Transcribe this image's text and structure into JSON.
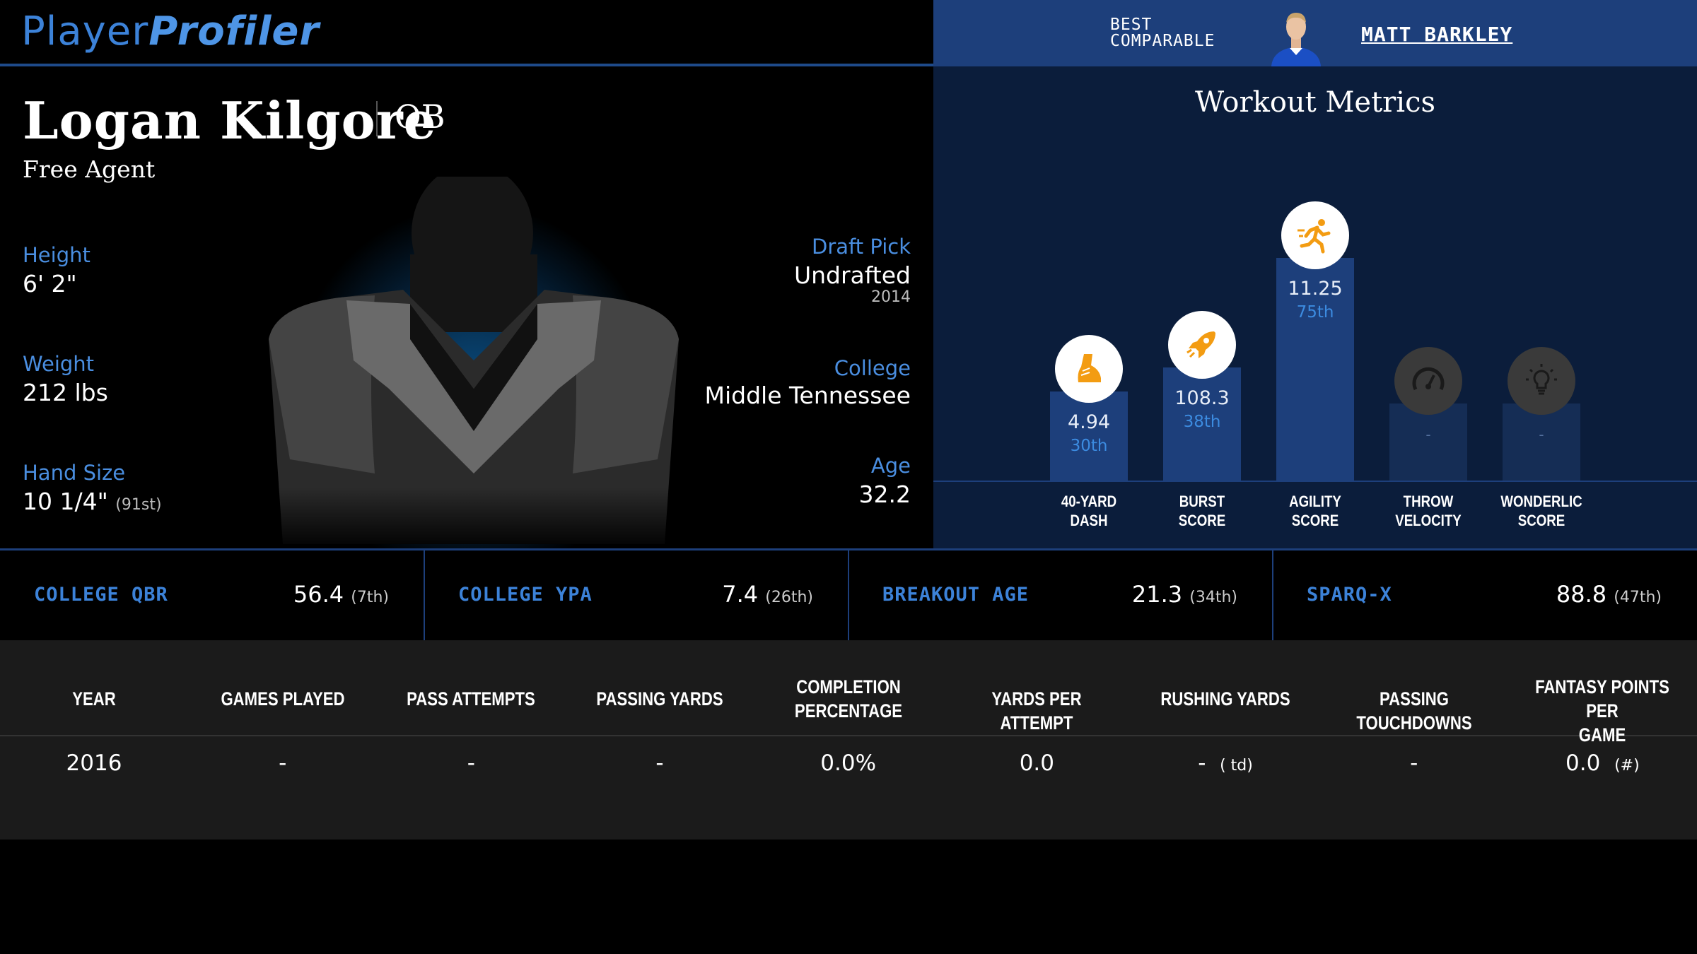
{
  "header": {
    "logo_part1": "Player",
    "logo_part2": "Profiler",
    "comparable_label_line1": "BEST",
    "comparable_label_line2": "COMPARABLE",
    "comparable_name": "MATT BARKLEY"
  },
  "player": {
    "name": "Logan Kilgore",
    "position": "QB",
    "team": "Free Agent",
    "height_label": "Height",
    "height": "6' 2\"",
    "weight_label": "Weight",
    "weight": "212 lbs",
    "hand_label": "Hand Size",
    "hand": "10 1/4\"",
    "hand_rank": "(91st)",
    "draft_label": "Draft Pick",
    "draft": "Undrafted",
    "draft_year": "2014",
    "college_label": "College",
    "college": "Middle Tennessee",
    "age_label": "Age",
    "age": "32.2"
  },
  "workout": {
    "title": "Workout Metrics",
    "metrics": [
      {
        "label1": "40-YARD",
        "label2": "DASH",
        "value": "4.94",
        "rank": "30th",
        "percentile": 30,
        "icon": "shoe-icon"
      },
      {
        "label1": "BURST",
        "label2": "SCORE",
        "value": "108.3",
        "rank": "38th",
        "percentile": 38,
        "icon": "rocket-icon"
      },
      {
        "label1": "AGILITY",
        "label2": "SCORE",
        "value": "11.25",
        "rank": "75th",
        "percentile": 75,
        "icon": "runner-icon"
      },
      {
        "label1": "THROW",
        "label2": "VELOCITY",
        "value": "-",
        "rank": "",
        "percentile": 26,
        "icon": "speedometer-icon"
      },
      {
        "label1": "WONDERLIC",
        "label2": "SCORE",
        "value": "-",
        "rank": "",
        "percentile": 26,
        "icon": "lightbulb-icon"
      }
    ]
  },
  "stats": [
    {
      "label": "COLLEGE QBR",
      "value": "56.4",
      "rank": "(7th)"
    },
    {
      "label": "COLLEGE YPA",
      "value": "7.4",
      "rank": "(26th)"
    },
    {
      "label": "BREAKOUT AGE",
      "value": "21.3",
      "rank": "(34th)"
    },
    {
      "label": "SPARQ-X",
      "value": "88.8",
      "rank": "(47th)"
    }
  ],
  "table": {
    "headers": [
      [
        "YEAR",
        ""
      ],
      [
        "GAMES PLAYED",
        ""
      ],
      [
        "PASS ATTEMPTS",
        ""
      ],
      [
        "PASSING YARDS",
        ""
      ],
      [
        "COMPLETION",
        "PERCENTAGE"
      ],
      [
        "YARDS PER ATTEMPT",
        ""
      ],
      [
        "RUSHING YARDS",
        ""
      ],
      [
        "PASSING TOUCHDOWNS",
        ""
      ],
      [
        "FANTASY POINTS PER",
        "GAME"
      ]
    ],
    "rows": [
      {
        "year": "2016",
        "games": "-",
        "attempts": "-",
        "yards": "-",
        "completion": "0.0%",
        "ypa": "0.0",
        "rushing": "-",
        "rushing_td": "( td)",
        "ptd": "-",
        "fppg": "0.0",
        "fppg_rank": "(#)"
      }
    ]
  },
  "colors": {
    "accent": "#3c82d8",
    "bar": "#1d3f7b",
    "icon_orange": "#f39c12"
  }
}
